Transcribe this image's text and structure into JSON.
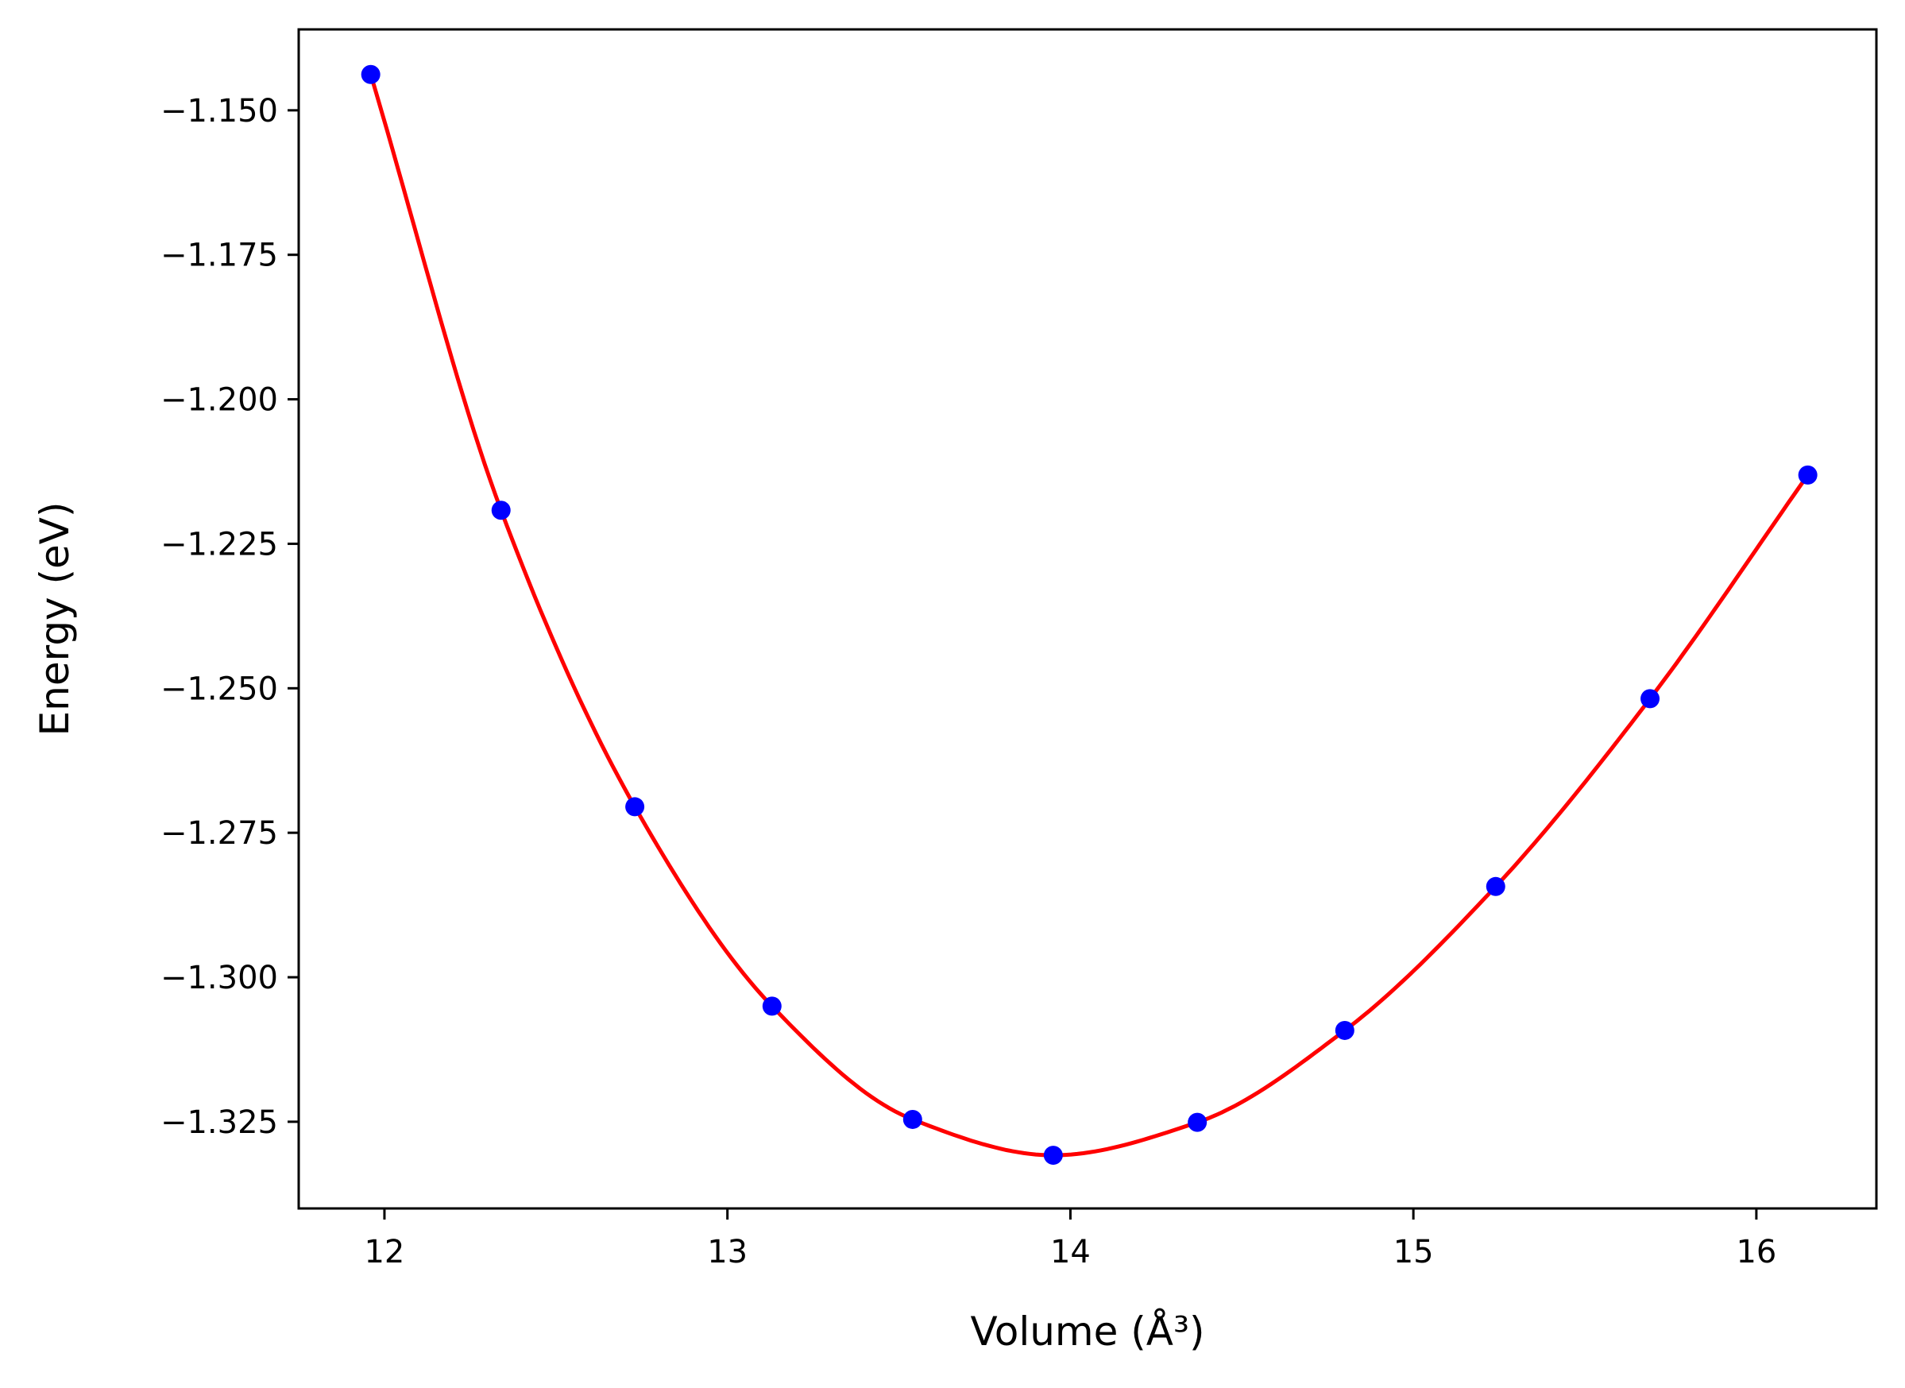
{
  "chart_data": {
    "type": "scatter",
    "title": "",
    "xlabel": "Volume (Å³)",
    "ylabel": "Energy (eV)",
    "xlim": [
      11.75,
      16.35
    ],
    "ylim": [
      -1.34,
      -1.136
    ],
    "xticks": [
      12,
      13,
      14,
      15,
      16
    ],
    "xtick_labels": [
      "12",
      "13",
      "14",
      "15",
      "16"
    ],
    "yticks": [
      -1.15,
      -1.175,
      -1.2,
      -1.225,
      -1.25,
      -1.275,
      -1.3,
      -1.325
    ],
    "ytick_labels": [
      "−1.150",
      "−1.175",
      "−1.200",
      "−1.225",
      "−1.250",
      "−1.275",
      "−1.300",
      "−1.325"
    ],
    "grid": false,
    "legend": "none",
    "series": [
      {
        "kind": "points",
        "color": "#0000ff",
        "x": [
          11.96,
          12.34,
          12.73,
          13.13,
          13.54,
          13.95,
          14.37,
          14.8,
          15.24,
          15.69,
          16.15
        ],
        "y": [
          -1.1438,
          -1.2192,
          -1.2705,
          -1.305,
          -1.3246,
          -1.3308,
          -1.3251,
          -1.3092,
          -1.2843,
          -1.2518,
          -1.2131
        ]
      },
      {
        "kind": "fit-curve",
        "color": "#ff0000",
        "x": [
          11.96,
          12.34,
          12.73,
          13.13,
          13.54,
          13.95,
          14.37,
          14.8,
          15.24,
          15.69,
          16.15
        ],
        "y": [
          -1.1438,
          -1.2192,
          -1.2705,
          -1.305,
          -1.3246,
          -1.3308,
          -1.3251,
          -1.3092,
          -1.2843,
          -1.2518,
          -1.2131
        ]
      }
    ]
  }
}
